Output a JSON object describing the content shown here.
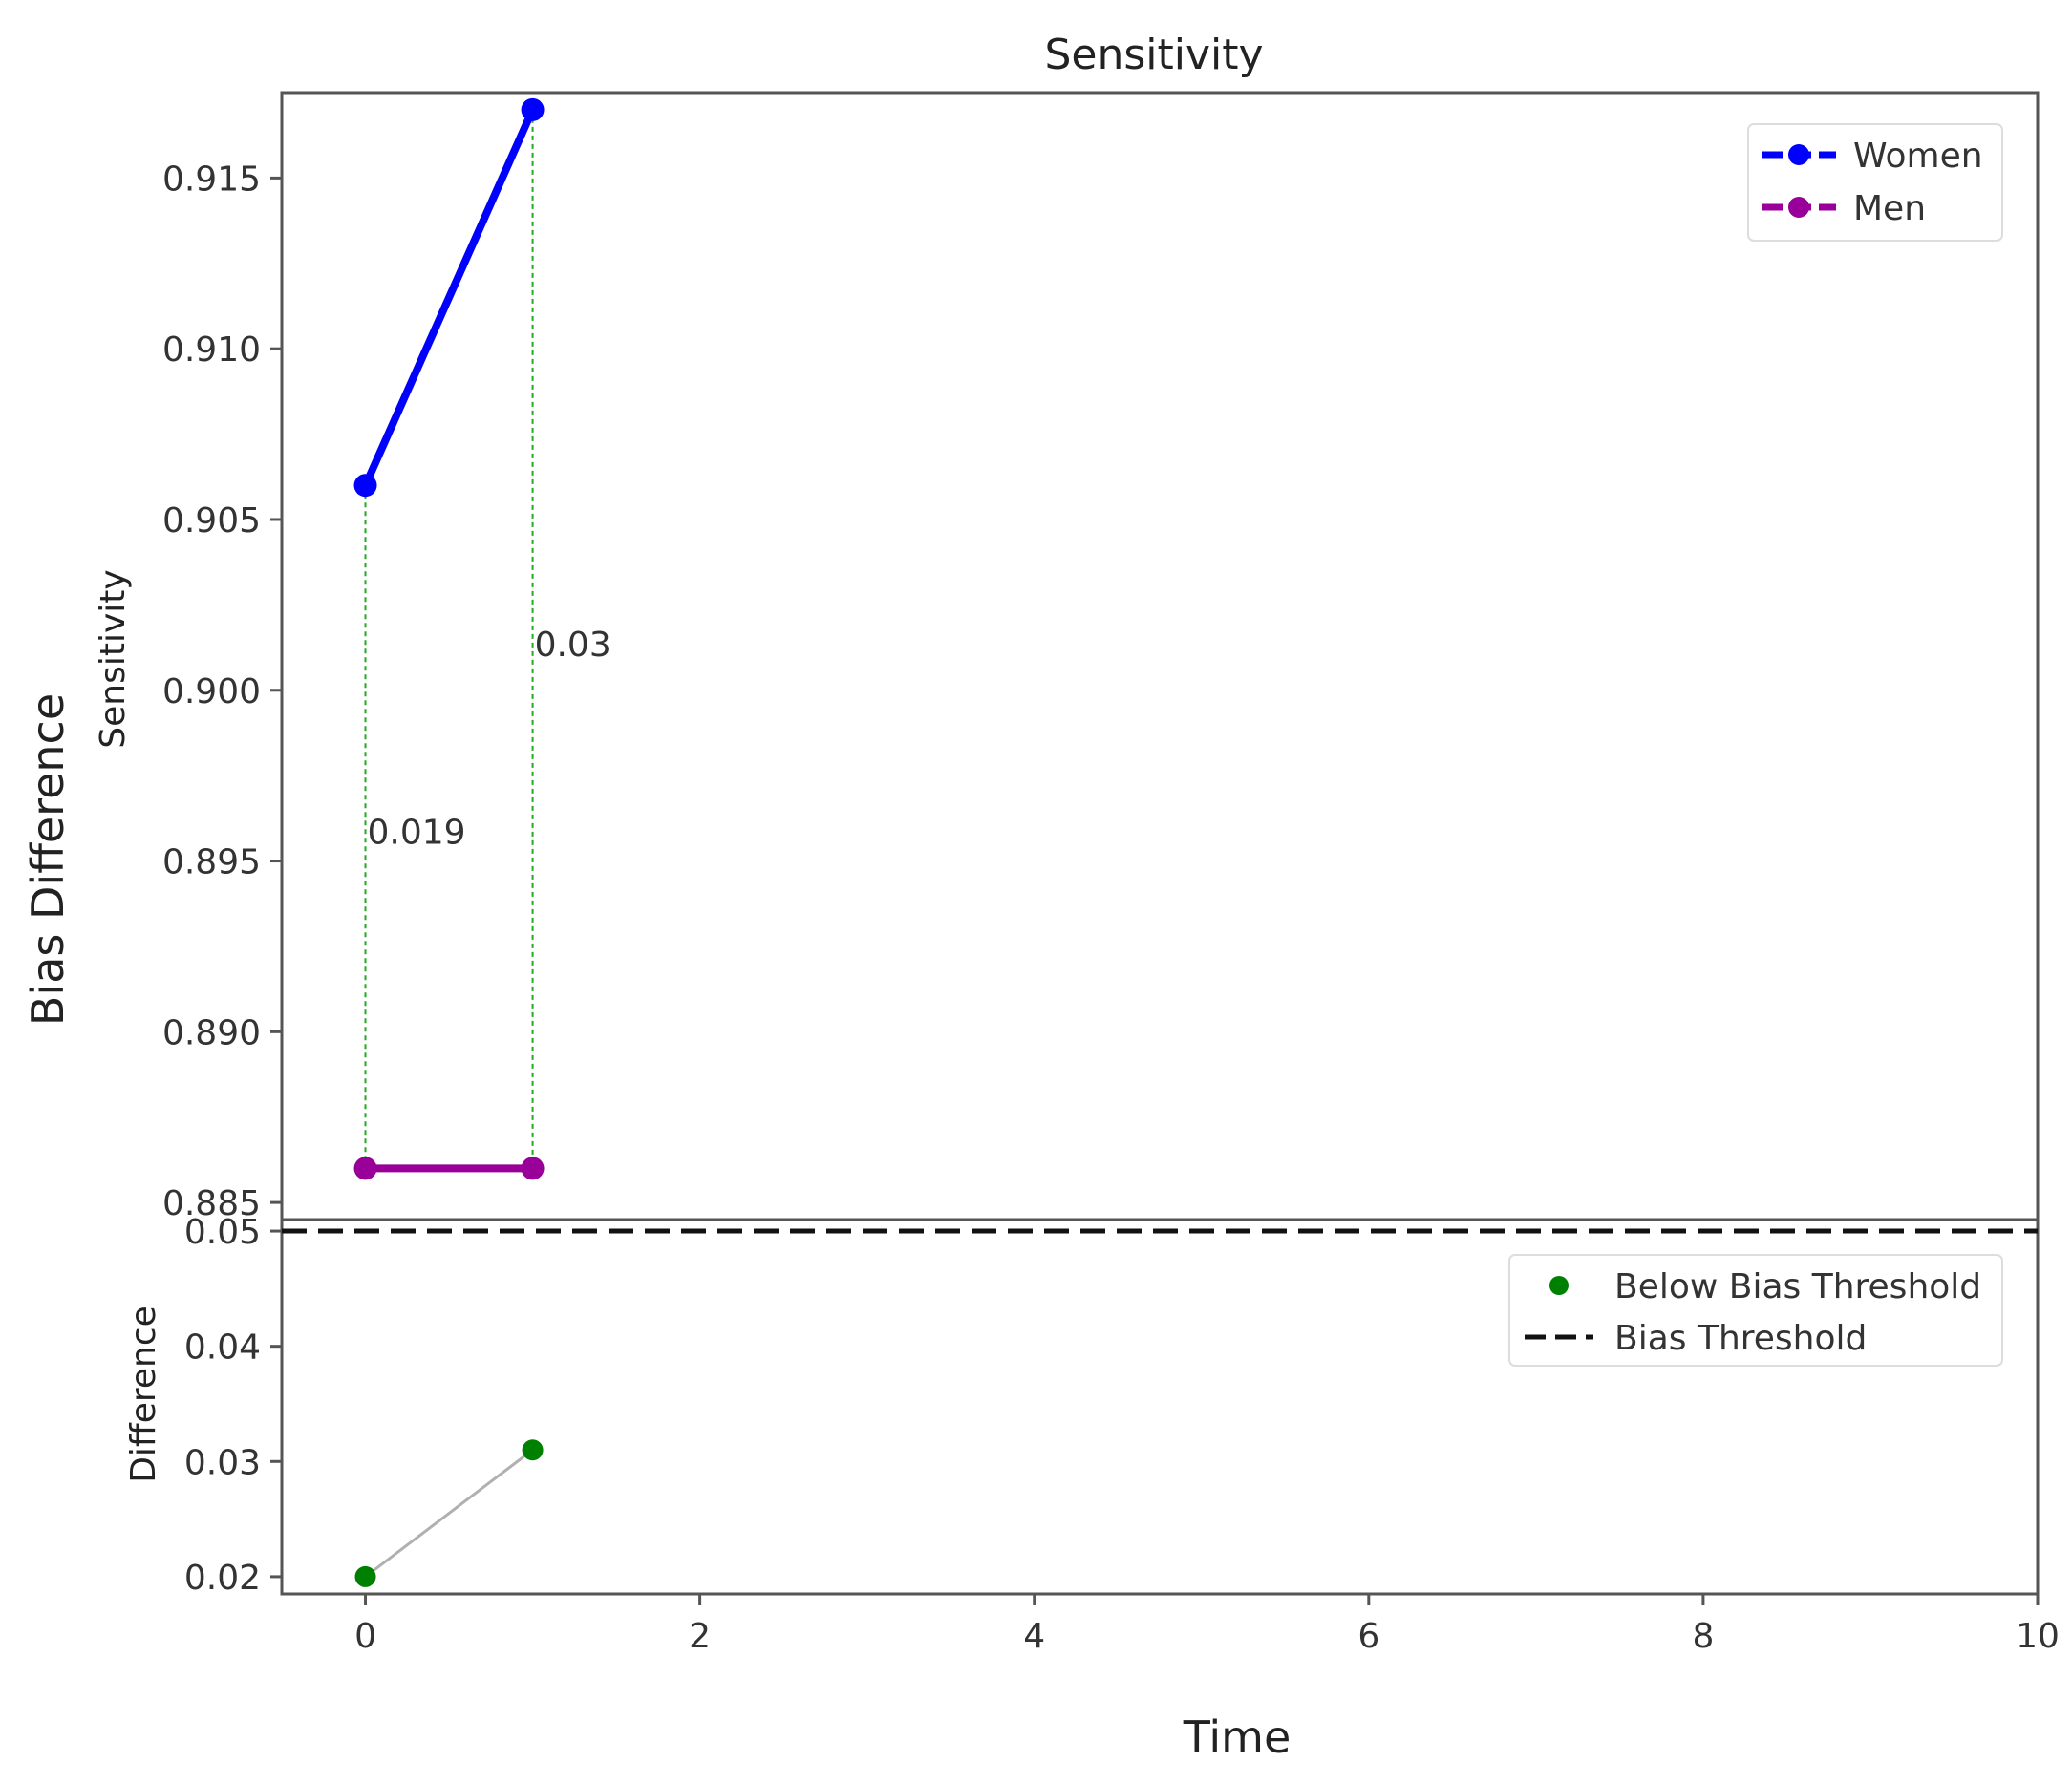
{
  "chart_data": {
    "title": "Sensitivity",
    "shared_xlabel": "Time",
    "shared_ylabel": "Bias Difference",
    "xlim": [
      -0.5,
      10
    ],
    "xticks": [
      0,
      2,
      4,
      6,
      8,
      10
    ],
    "panels": [
      {
        "type": "line",
        "ylabel": "Sensitivity",
        "ylim": [
          0.8845,
          0.9175
        ],
        "yticks": [
          "0.885",
          "0.890",
          "0.895",
          "0.900",
          "0.905",
          "0.910",
          "0.915"
        ],
        "series": [
          {
            "name": "Women",
            "color": "#0000ff",
            "x": [
              0,
              1
            ],
            "values": [
              0.906,
              0.917
            ]
          },
          {
            "name": "Men",
            "color": "#990099",
            "x": [
              0,
              1
            ],
            "values": [
              0.886,
              0.886
            ]
          }
        ],
        "annotations": [
          {
            "text": "0.019",
            "x": 0,
            "y": 0.8955
          },
          {
            "text": "0.03",
            "x": 1,
            "y": 0.901
          }
        ],
        "legend": "top-right"
      },
      {
        "type": "scatter",
        "ylabel": "Difference",
        "ylim": [
          0.0185,
          0.051
        ],
        "yticks": [
          "0.02",
          "0.03",
          "0.04",
          "0.05"
        ],
        "series": [
          {
            "name": "Below Bias Threshold",
            "color": "#008000",
            "x": [
              0,
              1
            ],
            "values": [
              0.02,
              0.031
            ]
          }
        ],
        "threshold": {
          "name": "Bias Threshold",
          "value": 0.05
        },
        "legend": "top-right"
      }
    ]
  }
}
